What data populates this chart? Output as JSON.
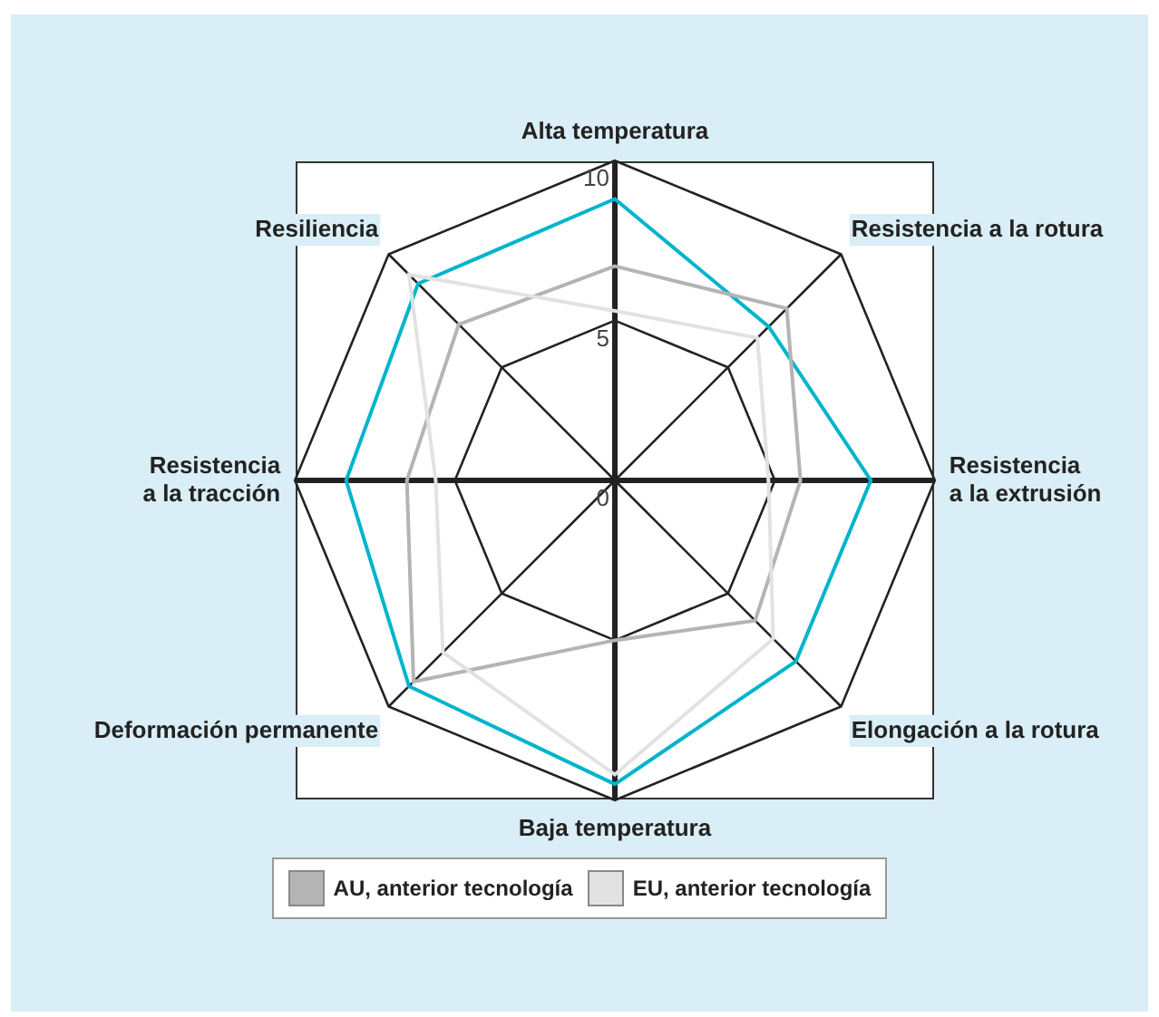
{
  "chart_data": {
    "type": "radar",
    "categories": [
      "Alta temperatura",
      "Resistencia a la rotura",
      "Resistencia\na la extrusión",
      "Elongación a la rotura",
      "Baja temperatura",
      "Deformación permanente",
      "Resistencia\na la tracción",
      "Resiliencia"
    ],
    "series": [
      {
        "color": "#00b4cc",
        "values": [
          8.8,
          6.8,
          8.0,
          8.0,
          9.5,
          9.1,
          8.4,
          8.7
        ]
      },
      {
        "name": "AU, anterior tecnología",
        "color": "#b4b4b4",
        "values": [
          6.7,
          7.6,
          5.8,
          6.2,
          5.0,
          8.9,
          6.5,
          6.9
        ]
      },
      {
        "name": "EU, anterior tecnología",
        "color": "#e2e2e2",
        "values": [
          5.3,
          6.3,
          4.8,
          7.0,
          9.2,
          7.6,
          5.6,
          9.1
        ]
      }
    ],
    "ylim": [
      0,
      10
    ],
    "yticks": [
      0,
      5,
      10
    ],
    "legend": "bottom",
    "marker": "none",
    "grid": true
  }
}
